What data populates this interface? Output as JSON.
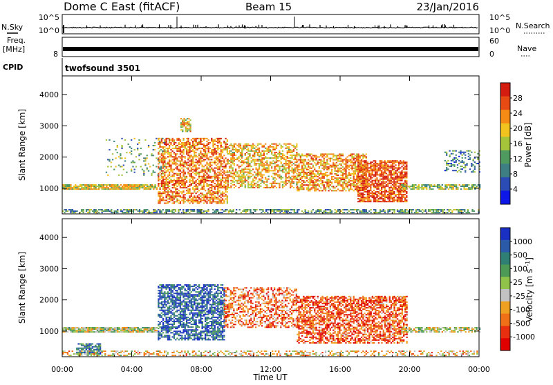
{
  "header": {
    "station": "Dome C East (fitACF)",
    "beam": "Beam 15",
    "date": "23/Jan/2016"
  },
  "nsky": {
    "label": "N.Sky",
    "tick_high": "10^5",
    "tick_low": "10^0",
    "right_label": "N.Search"
  },
  "freq": {
    "label_line1": "Freq.",
    "label_line2": "[MHz]",
    "tick_left_low": "8",
    "tick_right_high": "60",
    "tick_right_low": "0",
    "right_label": "Nave"
  },
  "cpid": {
    "label": "CPID",
    "value": "twofsound 3501"
  },
  "chart_data": [
    {
      "type": "heatmap",
      "name": "power",
      "ylabel": "Slant Range [km]",
      "xlabel": "",
      "x_ticks": [
        "00:00",
        "04:00",
        "08:00",
        "12:00",
        "16:00",
        "20:00",
        "00:00"
      ],
      "xlim_hours": [
        0,
        24
      ],
      "y_ticks": [
        1000,
        2000,
        3000,
        4000
      ],
      "ylim": [
        180,
        4600
      ],
      "colorbar": {
        "label": "Power [dB]",
        "ticks": [
          "4",
          "8",
          "12",
          "16",
          "20",
          "24",
          "28"
        ],
        "range": [
          0,
          32
        ],
        "colors": [
          "#0d18e8",
          "#2a4cb4",
          "#3e7f84",
          "#4f9a5e",
          "#a6c43a",
          "#f2c21e",
          "#f58a14",
          "#e74a12",
          "#d41c10"
        ]
      },
      "bands": [
        {
          "t0": 0.0,
          "t1": 24.0,
          "r0": 200,
          "r1": 330,
          "density": 0.6,
          "level": 0.35
        },
        {
          "t0": 0.0,
          "t1": 5.4,
          "r0": 950,
          "r1": 1100,
          "density": 0.9,
          "level": 0.55
        },
        {
          "t0": 5.5,
          "t1": 9.5,
          "r0": 500,
          "r1": 2600,
          "density": 0.6,
          "level": 0.75
        },
        {
          "t0": 6.8,
          "t1": 7.4,
          "r0": 2800,
          "r1": 3250,
          "density": 0.7,
          "level": 0.6
        },
        {
          "t0": 9.5,
          "t1": 13.5,
          "r0": 1000,
          "r1": 2400,
          "density": 0.55,
          "level": 0.65
        },
        {
          "t0": 13.5,
          "t1": 17.5,
          "r0": 900,
          "r1": 2100,
          "density": 0.6,
          "level": 0.7
        },
        {
          "t0": 17.0,
          "t1": 19.8,
          "r0": 550,
          "r1": 1900,
          "density": 0.75,
          "level": 0.85
        },
        {
          "t0": 19.5,
          "t1": 24.0,
          "r0": 950,
          "r1": 1100,
          "density": 0.7,
          "level": 0.45
        },
        {
          "t0": 2.5,
          "t1": 6.0,
          "r0": 1400,
          "r1": 2600,
          "density": 0.12,
          "level": 0.4
        },
        {
          "t0": 22.0,
          "t1": 24.0,
          "r0": 1500,
          "r1": 2200,
          "density": 0.3,
          "level": 0.3
        }
      ]
    },
    {
      "type": "heatmap",
      "name": "velocity",
      "ylabel": "Slant Range [km]",
      "xlabel": "Time UT",
      "x_ticks": [
        "00:00",
        "04:00",
        "08:00",
        "12:00",
        "16:00",
        "20:00",
        "00:00"
      ],
      "xlim_hours": [
        0,
        24
      ],
      "y_ticks": [
        1000,
        2000,
        3000,
        4000
      ],
      "ylim": [
        180,
        4600
      ],
      "colorbar": {
        "label": "Velocity [m s^-1]",
        "ticks": [
          "1000",
          "500",
          "100",
          "25",
          "-25",
          "-100",
          "-500",
          "-1000"
        ],
        "colors": [
          "#1a2fc4",
          "#2b5aa8",
          "#2f7f74",
          "#4c9a55",
          "#8fc34a",
          "#c2c2c2",
          "#f0a020",
          "#f07018",
          "#e83010",
          "#e00000"
        ]
      },
      "bands": [
        {
          "t0": 0.0,
          "t1": 5.4,
          "r0": 950,
          "r1": 1100,
          "density": 0.9,
          "level": 0.5
        },
        {
          "t0": 0.8,
          "t1": 2.2,
          "r0": 250,
          "r1": 600,
          "density": 0.7,
          "level": 0.8
        },
        {
          "t0": 5.5,
          "t1": 9.3,
          "r0": 700,
          "r1": 2500,
          "density": 0.65,
          "level": 0.85
        },
        {
          "t0": 9.3,
          "t1": 13.5,
          "r0": 1100,
          "r1": 2400,
          "density": 0.5,
          "level": 0.25
        },
        {
          "t0": 13.5,
          "t1": 19.8,
          "r0": 600,
          "r1": 2100,
          "density": 0.65,
          "level": 0.2
        },
        {
          "t0": 19.5,
          "t1": 24.0,
          "r0": 950,
          "r1": 1100,
          "density": 0.7,
          "level": 0.5
        },
        {
          "t0": 0.0,
          "t1": 24.0,
          "r0": 200,
          "r1": 350,
          "density": 0.4,
          "level": 0.4
        }
      ]
    }
  ]
}
